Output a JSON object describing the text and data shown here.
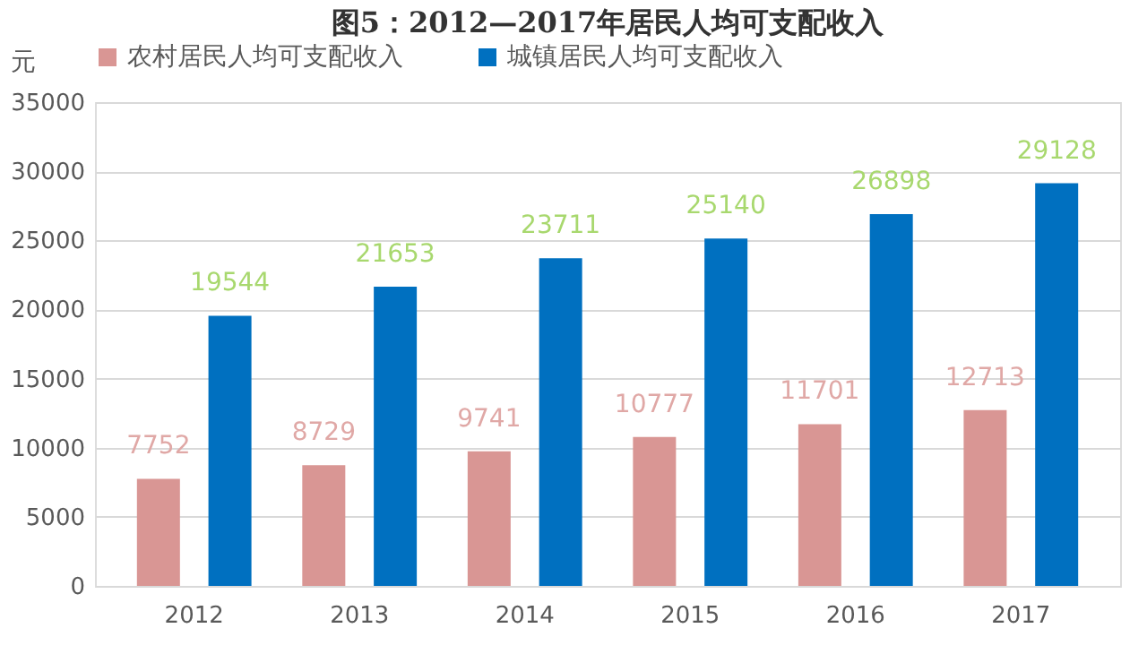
{
  "chart_data": {
    "type": "bar",
    "title": "图5：2012—2017年居民人均可支配收入",
    "ylabel": "元",
    "categories": [
      "2012",
      "2013",
      "2014",
      "2015",
      "2016",
      "2017"
    ],
    "series": [
      {
        "name": "农村居民人均可支配收入",
        "color": "#d99694",
        "values": [
          7752,
          8729,
          9741,
          10777,
          11701,
          12713
        ]
      },
      {
        "name": "城镇居民人均可支配收入",
        "color": "#0070c0",
        "values": [
          19544,
          21653,
          23711,
          25140,
          26898,
          29128
        ]
      }
    ],
    "ylim": [
      0,
      35000
    ],
    "yticks": [
      0,
      5000,
      10000,
      15000,
      20000,
      25000,
      30000,
      35000
    ],
    "grid": "y",
    "legend": "top",
    "data_labels": true
  }
}
